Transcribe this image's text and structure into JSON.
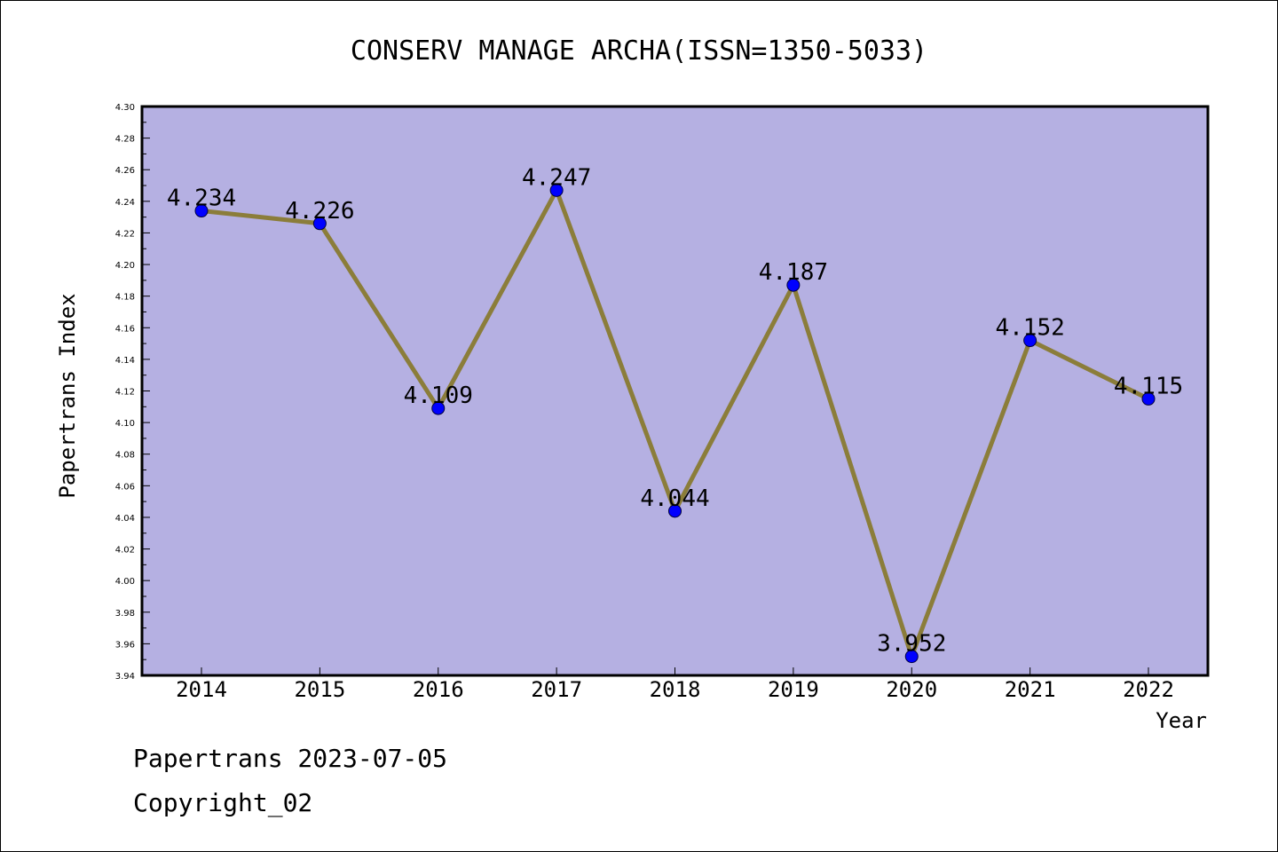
{
  "chart_data": {
    "type": "line",
    "title": "CONSERV MANAGE ARCHA(ISSN=1350-5033)",
    "xlabel": "Year",
    "ylabel": "Papertrans Index",
    "categories": [
      "2014",
      "2015",
      "2016",
      "2017",
      "2018",
      "2019",
      "2020",
      "2021",
      "2022"
    ],
    "series": [
      {
        "values": [
          4.234,
          4.226,
          4.109,
          4.247,
          4.044,
          4.187,
          3.952,
          4.152,
          4.115
        ]
      }
    ],
    "data_labels": [
      "4.234",
      "4.226",
      "4.109",
      "4.247",
      "4.044",
      "4.187",
      "3.952",
      "4.152",
      "4.115"
    ],
    "ylim": [
      3.94,
      4.3
    ],
    "yticks": [
      "3.94",
      "3.96",
      "3.98",
      "4.00",
      "4.02",
      "4.04",
      "4.06",
      "4.08",
      "4.10",
      "4.12",
      "4.14",
      "4.16",
      "4.18",
      "4.20",
      "4.22",
      "4.24",
      "4.26",
      "4.28",
      "4.30"
    ],
    "grid": false,
    "colors": {
      "plot_background": "#b5b0e2",
      "line": "#8b7d3a",
      "marker": "#0000ff"
    }
  },
  "footer": {
    "source": "Papertrans 2023-07-05",
    "copyright": "Copyright_02"
  }
}
